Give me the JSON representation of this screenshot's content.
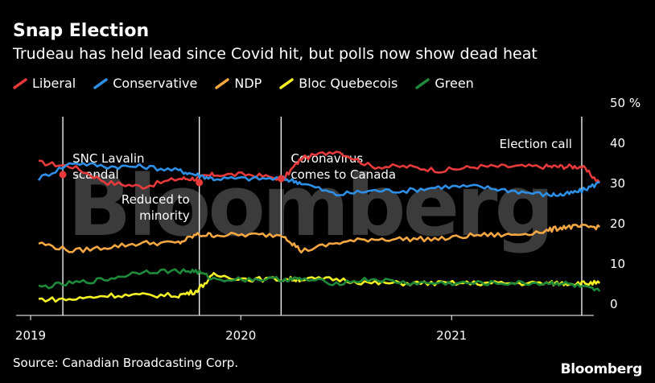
{
  "header": {
    "title": "Snap Election",
    "subtitle": "Trudeau has held lead since Covid hit, but polls now show dead heat"
  },
  "footer": {
    "source": "Source: Canadian Broadcasting Corp.",
    "brand": "Bloomberg"
  },
  "watermark": "Bloomberg",
  "colors": {
    "Liberal": "#e8393b",
    "Conservative": "#2e8fe6",
    "NDP": "#f5a742",
    "Bloc Quebecois": "#f5f224",
    "Green": "#1e8a3a",
    "background": "#000000",
    "gridline": "#ffffff"
  },
  "chart_data": {
    "type": "line",
    "xlabel": "",
    "ylabel": "",
    "ylim": [
      0,
      50
    ],
    "x_tick_labels": [
      "2019",
      "2020",
      "2021"
    ],
    "y_tick_labels": [
      "50 %",
      "40",
      "30",
      "20",
      "10",
      "0"
    ],
    "legend_position": "top-left",
    "x": [
      "2019-01",
      "2019-03",
      "2019-05",
      "2019-07",
      "2019-09",
      "2019-10",
      "2019-11",
      "2020-01",
      "2020-03",
      "2020-04",
      "2020-06",
      "2020-08",
      "2020-10",
      "2020-12",
      "2021-02",
      "2021-04",
      "2021-06",
      "2021-07",
      "2021-08",
      "2021-09"
    ],
    "series": [
      {
        "name": "Liberal",
        "values": [
          35,
          34,
          30,
          29,
          31,
          31,
          32,
          32,
          31,
          36,
          38,
          34,
          34,
          33,
          34,
          34,
          34,
          34,
          34,
          30
        ]
      },
      {
        "name": "Conservative",
        "values": [
          31,
          35,
          34,
          34,
          33,
          32,
          31,
          31,
          31,
          30,
          27,
          28,
          28,
          29,
          29,
          28,
          27,
          27,
          28,
          30
        ]
      },
      {
        "name": "NDP",
        "values": [
          15,
          13,
          14,
          15,
          15,
          17,
          17,
          17,
          17,
          13,
          15,
          16,
          16,
          16,
          17,
          17,
          18,
          19,
          19,
          19
        ]
      },
      {
        "name": "Bloc Quebecois",
        "values": [
          1,
          1,
          2,
          2,
          2,
          3,
          7,
          6,
          6,
          6,
          6,
          5,
          5,
          5,
          5,
          5,
          5,
          5,
          5,
          5
        ]
      },
      {
        "name": "Green",
        "values": [
          4,
          5,
          6,
          8,
          8,
          8,
          6,
          6,
          6,
          6,
          5,
          6,
          5,
          5,
          5,
          5,
          5,
          5,
          4,
          3
        ]
      }
    ],
    "annotations": [
      {
        "label": "SNC Lavalin scandal",
        "lines": [
          "SNC Lavalin",
          "scandal"
        ],
        "x": "2019-02"
      },
      {
        "label": "Reduced to minority",
        "lines": [
          "Reduced to",
          "minority"
        ],
        "x": "2019-10"
      },
      {
        "label": "Coronavirus comes to Canada",
        "lines": [
          "Coronavirus",
          "comes to Canada"
        ],
        "x": "2020-03"
      },
      {
        "label": "Election call",
        "lines": [
          "Election call"
        ],
        "x": "2021-08"
      }
    ]
  }
}
